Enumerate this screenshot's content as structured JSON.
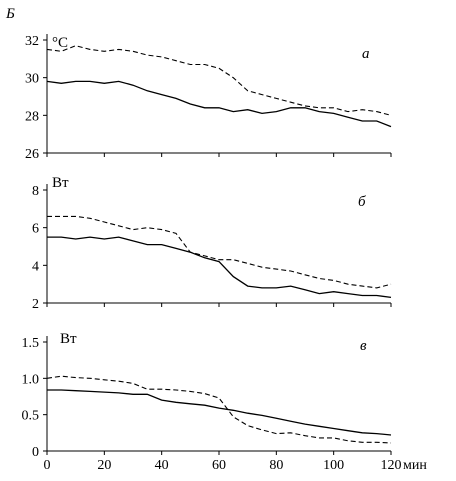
{
  "figure_label": "Б",
  "x_unit_label": "мин",
  "chart_data": [
    {
      "type": "line",
      "panel_label": "a",
      "unit_label": "°C",
      "x_ticks": [
        0,
        20,
        40,
        60,
        80,
        100,
        120
      ],
      "y_ticks": [
        26,
        28,
        30,
        32
      ],
      "xlim": [
        0,
        120
      ],
      "ylim": [
        26,
        32
      ],
      "series": [
        {
          "style": "dashed",
          "x": [
            0,
            5,
            10,
            15,
            20,
            25,
            30,
            35,
            40,
            45,
            50,
            55,
            60,
            65,
            70,
            75,
            80,
            85,
            90,
            95,
            100,
            105,
            110,
            115,
            120
          ],
          "y": [
            31.5,
            31.4,
            31.7,
            31.5,
            31.4,
            31.5,
            31.4,
            31.2,
            31.1,
            30.9,
            30.7,
            30.7,
            30.5,
            30.0,
            29.3,
            29.1,
            28.9,
            28.7,
            28.5,
            28.4,
            28.4,
            28.2,
            28.3,
            28.2,
            28.0
          ]
        },
        {
          "style": "solid",
          "x": [
            0,
            5,
            10,
            15,
            20,
            25,
            30,
            35,
            40,
            45,
            50,
            55,
            60,
            65,
            70,
            75,
            80,
            85,
            90,
            95,
            100,
            105,
            110,
            115,
            120
          ],
          "y": [
            29.8,
            29.7,
            29.8,
            29.8,
            29.7,
            29.8,
            29.6,
            29.3,
            29.1,
            28.9,
            28.6,
            28.4,
            28.4,
            28.2,
            28.3,
            28.1,
            28.2,
            28.4,
            28.4,
            28.2,
            28.1,
            27.9,
            27.7,
            27.7,
            27.4
          ]
        }
      ]
    },
    {
      "type": "line",
      "panel_label": "б",
      "unit_label": "Вт",
      "x_ticks": [
        0,
        20,
        40,
        60,
        80,
        100,
        120
      ],
      "y_ticks": [
        2,
        4,
        6,
        8
      ],
      "xlim": [
        0,
        120
      ],
      "ylim": [
        2,
        8
      ],
      "series": [
        {
          "style": "dashed",
          "x": [
            0,
            5,
            10,
            15,
            20,
            25,
            30,
            35,
            40,
            45,
            50,
            55,
            60,
            65,
            70,
            75,
            80,
            85,
            90,
            95,
            100,
            105,
            110,
            115,
            120
          ],
          "y": [
            6.6,
            6.6,
            6.6,
            6.5,
            6.3,
            6.1,
            5.9,
            6.0,
            5.9,
            5.7,
            4.7,
            4.5,
            4.3,
            4.3,
            4.1,
            3.9,
            3.8,
            3.7,
            3.5,
            3.3,
            3.2,
            3.0,
            2.9,
            2.8,
            3.0
          ]
        },
        {
          "style": "solid",
          "x": [
            0,
            5,
            10,
            15,
            20,
            25,
            30,
            35,
            40,
            45,
            50,
            55,
            60,
            65,
            70,
            75,
            80,
            85,
            90,
            95,
            100,
            105,
            110,
            115,
            120
          ],
          "y": [
            5.5,
            5.5,
            5.4,
            5.5,
            5.4,
            5.5,
            5.3,
            5.1,
            5.1,
            4.9,
            4.7,
            4.4,
            4.2,
            3.4,
            2.9,
            2.8,
            2.8,
            2.9,
            2.7,
            2.5,
            2.6,
            2.5,
            2.4,
            2.4,
            2.3
          ]
        }
      ]
    },
    {
      "type": "line",
      "panel_label": "в",
      "unit_label": "Вт",
      "x_ticks": [
        0,
        20,
        40,
        60,
        80,
        100,
        120
      ],
      "x_tick_labels": [
        "0",
        "20",
        "40",
        "60",
        "80",
        "100",
        "120"
      ],
      "y_ticks": [
        0,
        0.5,
        1.0,
        1.5
      ],
      "y_tick_labels": [
        "0",
        "0.5",
        "1.0",
        "1.5"
      ],
      "xlim": [
        0,
        120
      ],
      "ylim": [
        0,
        1.5
      ],
      "series": [
        {
          "style": "dashed",
          "x": [
            0,
            5,
            10,
            15,
            20,
            25,
            30,
            35,
            40,
            45,
            50,
            55,
            60,
            65,
            70,
            75,
            80,
            85,
            90,
            95,
            100,
            105,
            110,
            115,
            120
          ],
          "y": [
            1.0,
            1.03,
            1.01,
            1.0,
            0.98,
            0.96,
            0.93,
            0.85,
            0.85,
            0.84,
            0.82,
            0.79,
            0.73,
            0.47,
            0.35,
            0.29,
            0.24,
            0.25,
            0.21,
            0.18,
            0.18,
            0.14,
            0.12,
            0.12,
            0.11
          ]
        },
        {
          "style": "solid",
          "x": [
            0,
            5,
            10,
            15,
            20,
            25,
            30,
            35,
            40,
            45,
            50,
            55,
            60,
            65,
            70,
            75,
            80,
            85,
            90,
            95,
            100,
            105,
            110,
            115,
            120
          ],
          "y": [
            0.84,
            0.84,
            0.83,
            0.82,
            0.81,
            0.8,
            0.78,
            0.78,
            0.7,
            0.67,
            0.65,
            0.63,
            0.59,
            0.56,
            0.52,
            0.49,
            0.45,
            0.41,
            0.37,
            0.34,
            0.31,
            0.28,
            0.25,
            0.24,
            0.22
          ]
        }
      ]
    }
  ]
}
